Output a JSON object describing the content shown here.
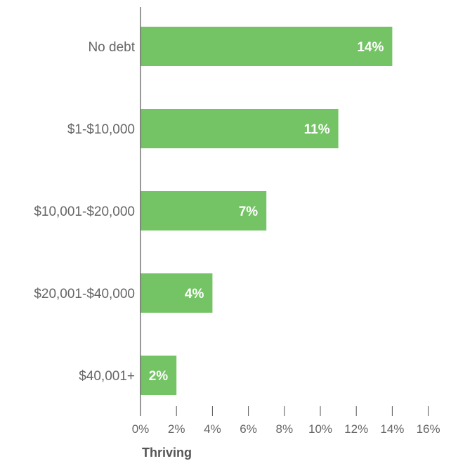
{
  "chart_data": {
    "type": "bar",
    "orientation": "horizontal",
    "categories": [
      "No debt",
      "$1-$10,000",
      "$10,001-$20,000",
      "$20,001-$40,000",
      "$40,001+"
    ],
    "values": [
      14,
      11,
      7,
      4,
      2
    ],
    "value_labels": [
      "14%",
      "11%",
      "7%",
      "4%",
      "2%"
    ],
    "xlabel": "Thriving",
    "ylabel": "",
    "xlim": [
      0,
      16
    ],
    "x_ticks": [
      0,
      2,
      4,
      6,
      8,
      10,
      12,
      14,
      16
    ],
    "x_tick_labels": [
      "0%",
      "2%",
      "4%",
      "6%",
      "8%",
      "10%",
      "12%",
      "14%",
      "16%"
    ],
    "grid": false,
    "legend": "none",
    "bar_color": "#74c365",
    "axis_color": "#555555"
  }
}
